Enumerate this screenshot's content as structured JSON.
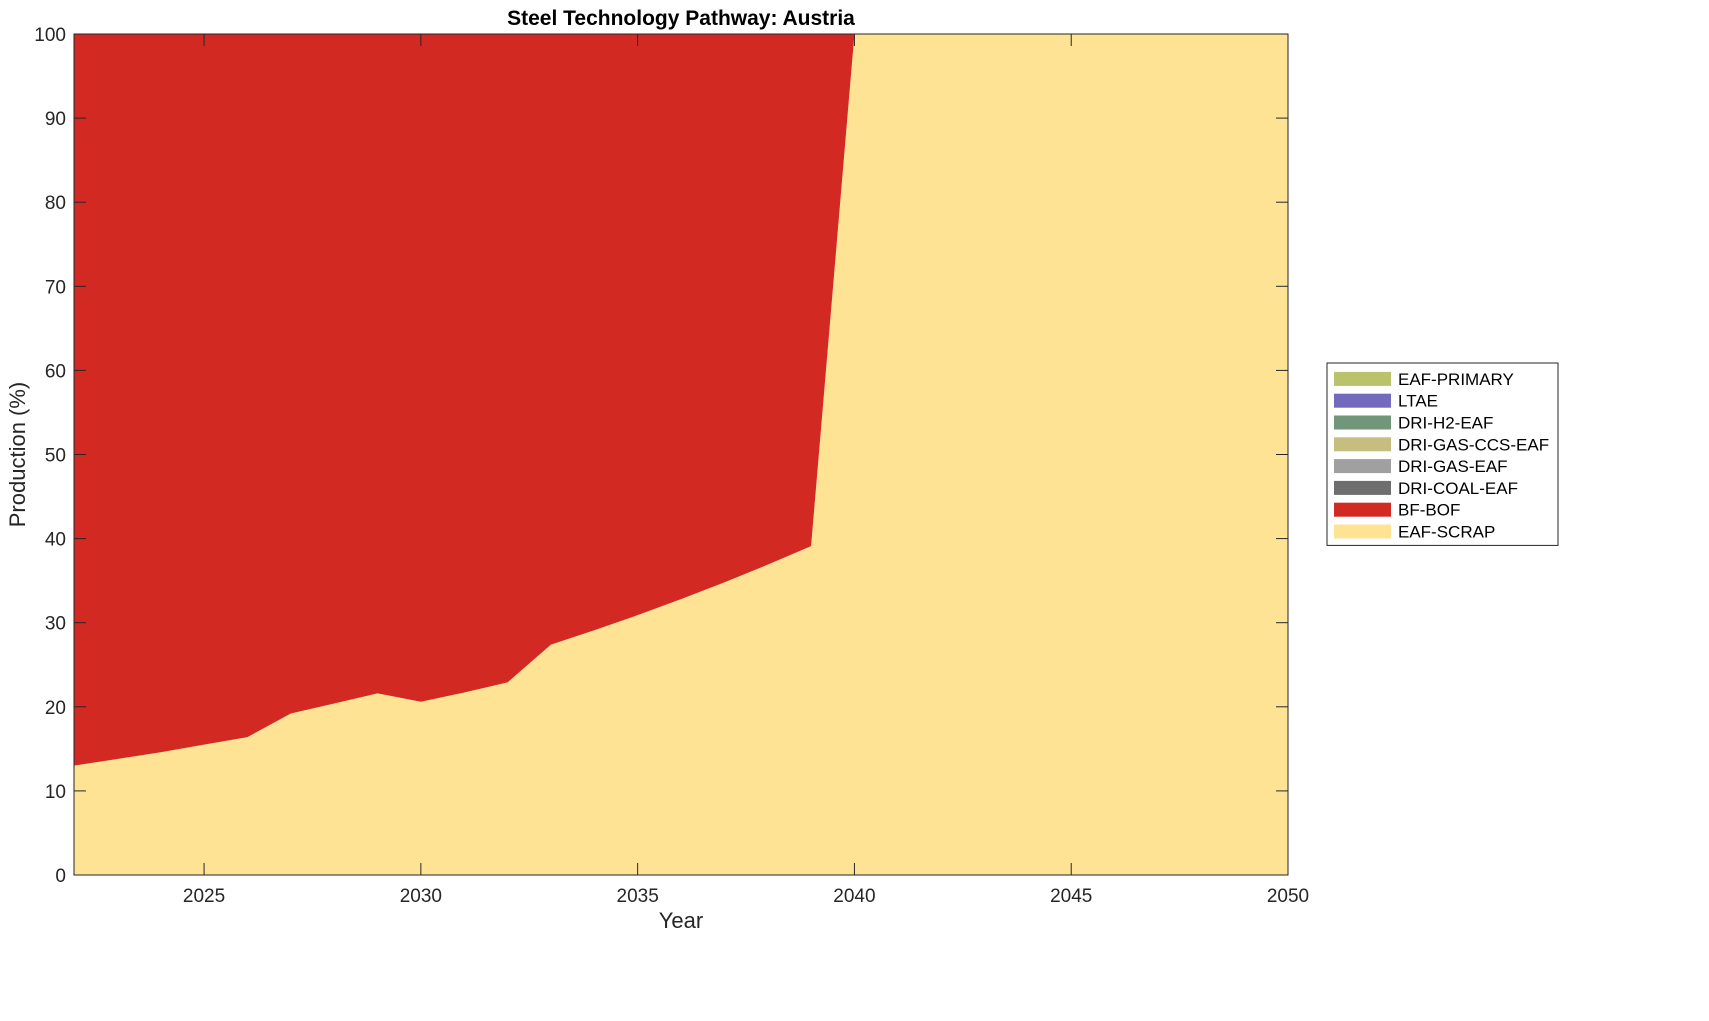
{
  "chart_data": {
    "type": "area",
    "title": "Steel Technology Pathway: Austria",
    "xlabel": "Year",
    "ylabel": "Production (%)",
    "xlim": [
      2022,
      2050
    ],
    "ylim": [
      0,
      100
    ],
    "xticks": [
      2025,
      2030,
      2035,
      2040,
      2045,
      2050
    ],
    "yticks": [
      0,
      10,
      20,
      30,
      40,
      50,
      60,
      70,
      80,
      90,
      100
    ],
    "grid": false,
    "legend_position": "right",
    "stacking": "stacked",
    "x": [
      2022,
      2023,
      2024,
      2025,
      2026,
      2027,
      2028,
      2029,
      2030,
      2031,
      2032,
      2033,
      2034,
      2035,
      2036,
      2037,
      2038,
      2039,
      2040,
      2041,
      2042,
      2043,
      2044,
      2045,
      2046,
      2047,
      2048,
      2049,
      2050
    ],
    "series": [
      {
        "name": "EAF-SCRAP",
        "color": "#FFE395",
        "values": [
          13,
          13.8,
          14.6,
          15.5,
          16.4,
          19.2,
          20.4,
          21.6,
          20.6,
          21.7,
          22.9,
          27.4,
          29.1,
          30.9,
          32.8,
          34.8,
          36.9,
          39.1,
          100,
          100,
          100,
          100,
          100,
          100,
          100,
          100,
          100,
          100,
          100
        ]
      },
      {
        "name": "BF-BOF",
        "color": "#D22A23",
        "values": [
          87,
          86.2,
          85.4,
          84.5,
          83.6,
          80.8,
          79.6,
          78.4,
          79.4,
          78.3,
          77.1,
          72.6,
          70.9,
          69.1,
          67.2,
          65.2,
          63.1,
          60.9,
          0,
          0,
          0,
          0,
          0,
          0,
          0,
          0,
          0,
          0,
          0
        ]
      },
      {
        "name": "DRI-COAL-EAF",
        "color": "#6E6E6E",
        "values": [
          0,
          0,
          0,
          0,
          0,
          0,
          0,
          0,
          0,
          0,
          0,
          0,
          0,
          0,
          0,
          0,
          0,
          0,
          0,
          0,
          0,
          0,
          0,
          0,
          0,
          0,
          0,
          0,
          0
        ]
      },
      {
        "name": "DRI-GAS-EAF",
        "color": "#A0A0A0",
        "values": [
          0,
          0,
          0,
          0,
          0,
          0,
          0,
          0,
          0,
          0,
          0,
          0,
          0,
          0,
          0,
          0,
          0,
          0,
          0,
          0,
          0,
          0,
          0,
          0,
          0,
          0,
          0,
          0,
          0
        ]
      },
      {
        "name": "DRI-GAS-CCS-EAF",
        "color": "#C6BD80",
        "values": [
          0,
          0,
          0,
          0,
          0,
          0,
          0,
          0,
          0,
          0,
          0,
          0,
          0,
          0,
          0,
          0,
          0,
          0,
          0,
          0,
          0,
          0,
          0,
          0,
          0,
          0,
          0,
          0,
          0
        ]
      },
      {
        "name": "DRI-H2-EAF",
        "color": "#71967A",
        "values": [
          0,
          0,
          0,
          0,
          0,
          0,
          0,
          0,
          0,
          0,
          0,
          0,
          0,
          0,
          0,
          0,
          0,
          0,
          0,
          0,
          0,
          0,
          0,
          0,
          0,
          0,
          0,
          0,
          0
        ]
      },
      {
        "name": "LTAE",
        "color": "#7369BD",
        "values": [
          0,
          0,
          0,
          0,
          0,
          0,
          0,
          0,
          0,
          0,
          0,
          0,
          0,
          0,
          0,
          0,
          0,
          0,
          0,
          0,
          0,
          0,
          0,
          0,
          0,
          0,
          0,
          0,
          0
        ]
      },
      {
        "name": "EAF-PRIMARY",
        "color": "#BAC36B",
        "values": [
          0,
          0,
          0,
          0,
          0,
          0,
          0,
          0,
          0,
          0,
          0,
          0,
          0,
          0,
          0,
          0,
          0,
          0,
          0,
          0,
          0,
          0,
          0,
          0,
          0,
          0,
          0,
          0,
          0
        ]
      }
    ],
    "legend_order": [
      "EAF-PRIMARY",
      "LTAE",
      "DRI-H2-EAF",
      "DRI-GAS-CCS-EAF",
      "DRI-GAS-EAF",
      "DRI-COAL-EAF",
      "BF-BOF",
      "EAF-SCRAP"
    ]
  }
}
